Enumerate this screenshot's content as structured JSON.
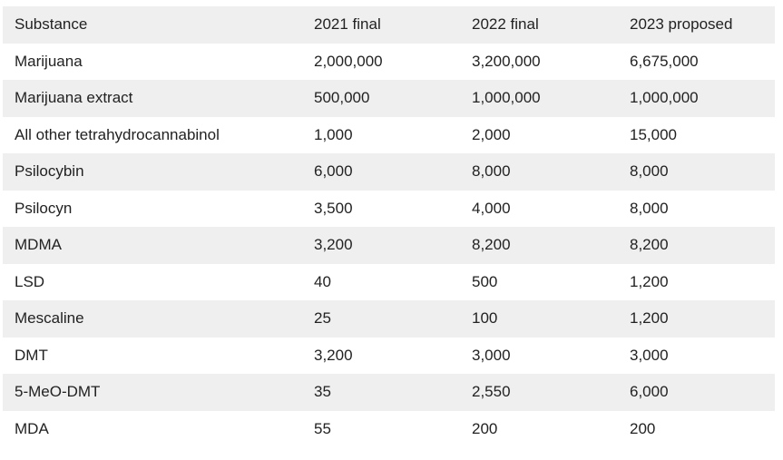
{
  "table": {
    "headers": [
      "Substance",
      "2021 final",
      "2022 final",
      "2023 proposed"
    ],
    "rows": [
      [
        "Marijuana",
        "2,000,000",
        "3,200,000",
        "6,675,000"
      ],
      [
        "Marijuana extract",
        "500,000",
        "1,000,000",
        "1,000,000"
      ],
      [
        "All other tetrahydrocannabinol",
        "1,000",
        "2,000",
        "15,000"
      ],
      [
        "Psilocybin",
        "6,000",
        "8,000",
        "8,000"
      ],
      [
        "Psilocyn",
        "3,500",
        "4,000",
        "8,000"
      ],
      [
        "MDMA",
        "3,200",
        "8,200",
        "8,200"
      ],
      [
        "LSD",
        "40",
        "500",
        "1,200"
      ],
      [
        "Mescaline",
        "25",
        "100",
        "1,200"
      ],
      [
        "DMT",
        "3,200",
        "3,000",
        "3,000"
      ],
      [
        "5-MeO-DMT",
        "35",
        "2,550",
        "6,000"
      ],
      [
        "MDA",
        "55",
        "200",
        "200"
      ]
    ]
  }
}
